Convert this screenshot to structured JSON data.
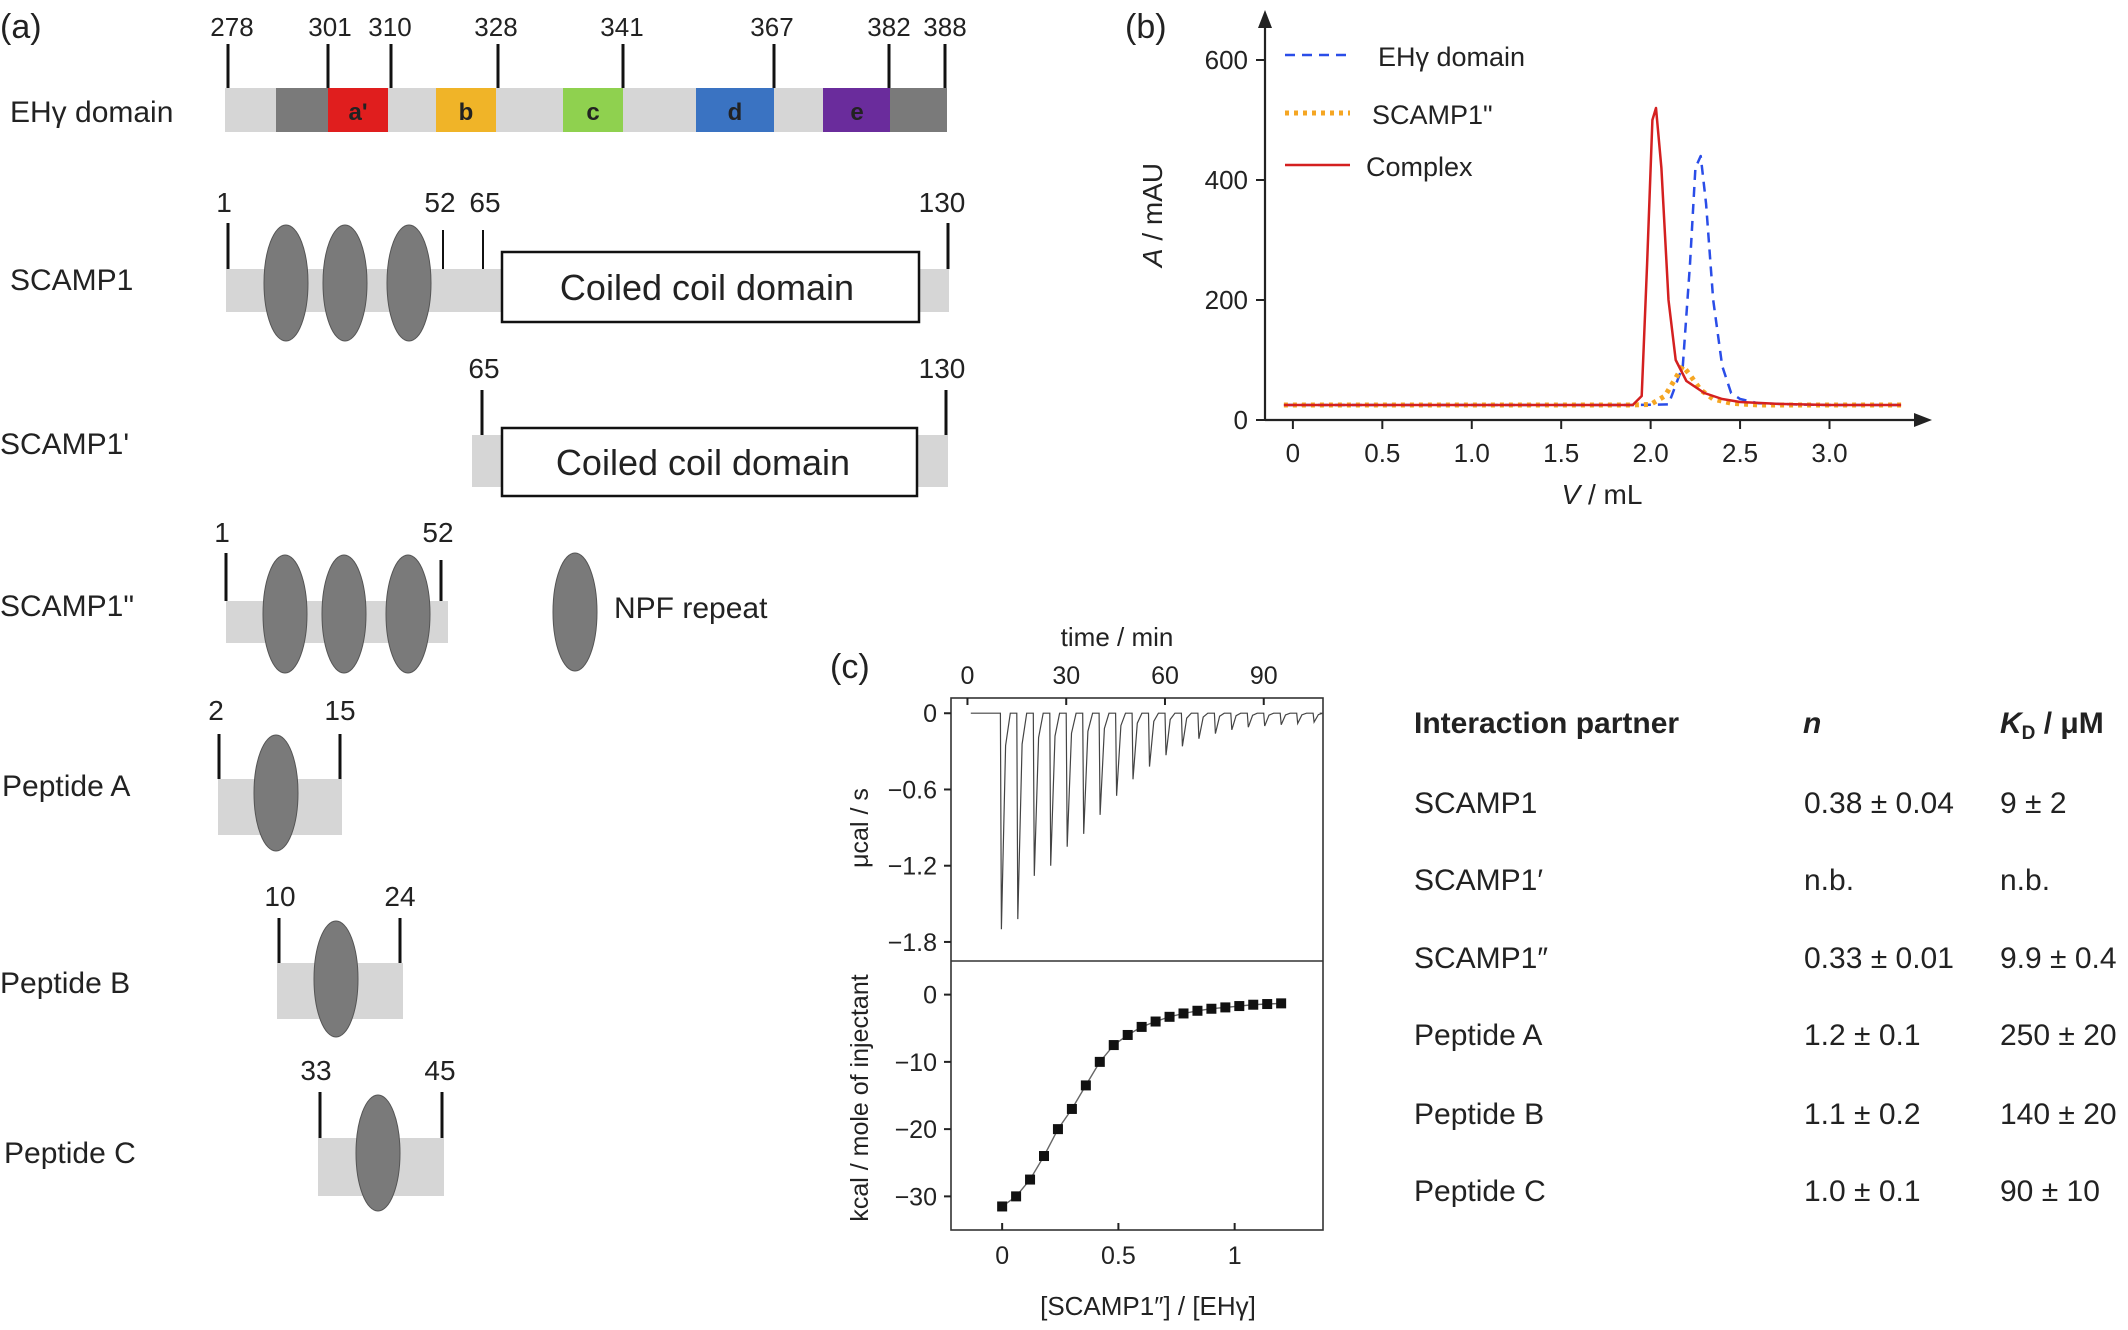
{
  "panel_a": {
    "label": "(a)",
    "eh_domain": {
      "name": "EHγ domain",
      "ticks": [
        "278",
        "301",
        "310",
        "328",
        "341",
        "367",
        "382",
        "388"
      ],
      "segments": [
        {
          "label": "a'",
          "color": "#e01e1e"
        },
        {
          "label": "b",
          "color": "#f0b428"
        },
        {
          "label": "c",
          "color": "#8fd14f"
        },
        {
          "label": "d",
          "color": "#3a73c2"
        },
        {
          "label": "e",
          "color": "#6a2c9c"
        }
      ]
    },
    "constructs": [
      {
        "name": "SCAMP1",
        "start": "1",
        "marks": [
          "52",
          "65"
        ],
        "end": "130",
        "coil_label": "Coiled coil domain"
      },
      {
        "name": "SCAMP1'",
        "start": "65",
        "end": "130",
        "coil_label": "Coiled coil domain"
      },
      {
        "name": "SCAMP1\"",
        "start": "1",
        "end": "52"
      },
      {
        "name": "Peptide A",
        "start": "2",
        "end": "15"
      },
      {
        "name": "Peptide B",
        "start": "10",
        "end": "24"
      },
      {
        "name": "Peptide C",
        "start": "33",
        "end": "45"
      }
    ],
    "npf_legend": "NPF repeat"
  },
  "panel_b": {
    "label": "(b)",
    "chart_data": {
      "type": "line",
      "xlabel_var": "V",
      "xlabel_unit": " / mL",
      "ylabel_var": "A",
      "ylabel_unit": " / mAU",
      "xlim": [
        -0.1,
        3.45
      ],
      "ylim": [
        0,
        650
      ],
      "xticks": [
        0,
        0.5,
        1.0,
        1.5,
        2.0,
        2.5,
        3.0
      ],
      "xtick_labels": [
        "0",
        "0.5",
        "1.0",
        "1.5",
        "2.0",
        "2.5",
        "3.0"
      ],
      "yticks": [
        0,
        200,
        400,
        600
      ],
      "ytick_labels": [
        "0",
        "200",
        "400",
        "600"
      ],
      "series": [
        {
          "name": "EHγ domain",
          "color": "#2a4de8",
          "style": "dashed",
          "x": [
            -0.05,
            1.9,
            2.1,
            2.18,
            2.22,
            2.25,
            2.28,
            2.31,
            2.35,
            2.4,
            2.45,
            2.5,
            2.6,
            2.8,
            3.0,
            3.4
          ],
          "y": [
            25,
            25,
            26,
            90,
            260,
            420,
            440,
            360,
            200,
            90,
            45,
            35,
            28,
            26,
            25,
            25
          ]
        },
        {
          "name": "SCAMP1\"",
          "color": "#f5a623",
          "style": "dotted",
          "x": [
            -0.05,
            1.9,
            2.0,
            2.08,
            2.14,
            2.18,
            2.22,
            2.28,
            2.35,
            2.45,
            2.6,
            2.8,
            3.4
          ],
          "y": [
            25,
            25,
            26,
            40,
            70,
            90,
            75,
            50,
            35,
            28,
            25,
            25,
            25
          ]
        },
        {
          "name": "Complex",
          "color": "#d42020",
          "style": "solid",
          "x": [
            -0.05,
            1.9,
            1.95,
            1.98,
            2.01,
            2.03,
            2.06,
            2.1,
            2.14,
            2.2,
            2.3,
            2.4,
            2.5,
            2.7,
            3.0,
            3.4
          ],
          "y": [
            25,
            25,
            40,
            260,
            500,
            520,
            420,
            200,
            100,
            65,
            45,
            35,
            30,
            27,
            25,
            25
          ]
        }
      ]
    }
  },
  "panel_c": {
    "label": "(c)",
    "chart_data": {
      "type": "scatter",
      "top_xlabel": "time / min",
      "top_xticks": [
        0,
        30,
        60,
        90
      ],
      "top_xtick_labels": [
        "0",
        "30",
        "60",
        "90"
      ],
      "top_xlim": [
        -5,
        108
      ],
      "top_ylabel": "μcal / s",
      "top_ylim": [
        -1.95,
        0.12
      ],
      "top_yticks": [
        0,
        -0.6,
        -1.2,
        -1.8
      ],
      "top_ytick_labels": [
        "0",
        "−0.6",
        "−1.2",
        "−1.8"
      ],
      "injections": {
        "time": [
          10,
          15,
          20,
          25,
          30,
          35,
          40,
          45,
          50,
          55,
          60,
          65,
          70,
          75,
          80,
          85,
          90,
          95,
          100,
          105
        ],
        "peak": [
          -1.7,
          -1.62,
          -1.28,
          -1.2,
          -1.05,
          -0.95,
          -0.8,
          -0.65,
          -0.52,
          -0.42,
          -0.33,
          -0.26,
          -0.2,
          -0.16,
          -0.13,
          -0.11,
          -0.1,
          -0.09,
          -0.08,
          -0.07
        ]
      },
      "bottom_xlabel": "[SCAMP1″] / [EHγ]",
      "bottom_xlim": [
        -0.22,
        1.38
      ],
      "bottom_xticks": [
        0,
        0.5,
        1
      ],
      "bottom_xtick_labels": [
        "0",
        "0.5",
        "1"
      ],
      "bottom_ylabel": "kcal / mole of injectant",
      "bottom_ylim": [
        -35,
        5
      ],
      "bottom_yticks": [
        0,
        -10,
        -20,
        -30
      ],
      "bottom_ytick_labels": [
        "0",
        "−10",
        "−20",
        "−30"
      ],
      "x": [
        0.0,
        0.06,
        0.12,
        0.18,
        0.24,
        0.3,
        0.36,
        0.42,
        0.48,
        0.54,
        0.6,
        0.66,
        0.72,
        0.78,
        0.84,
        0.9,
        0.96,
        1.02,
        1.08,
        1.14,
        1.2
      ],
      "y": [
        -31.5,
        -30.0,
        -27.5,
        -24.0,
        -20.0,
        -17.0,
        -13.5,
        -10.0,
        -7.5,
        -6.0,
        -4.8,
        -4.0,
        -3.3,
        -2.8,
        -2.4,
        -2.1,
        -1.9,
        -1.7,
        -1.5,
        -1.4,
        -1.3
      ]
    }
  },
  "table": {
    "headers": [
      "Interaction partner",
      "n",
      "KD / μM"
    ],
    "header_kd_main": "K",
    "header_kd_sub": "D",
    "header_kd_rest": " / μM",
    "rows": [
      [
        "SCAMP1",
        "0.38 ± 0.04",
        "9 ± 2"
      ],
      [
        "SCAMP1′",
        "n.b.",
        "n.b."
      ],
      [
        "SCAMP1″",
        "0.33 ± 0.01",
        "9.9 ± 0.4"
      ],
      [
        "Peptide A",
        "1.2 ± 0.1",
        "250 ± 20"
      ],
      [
        "Peptide B",
        "1.1 ± 0.2",
        "140 ± 20"
      ],
      [
        "Peptide C",
        "1.0 ± 0.1",
        "90 ± 10"
      ]
    ]
  }
}
